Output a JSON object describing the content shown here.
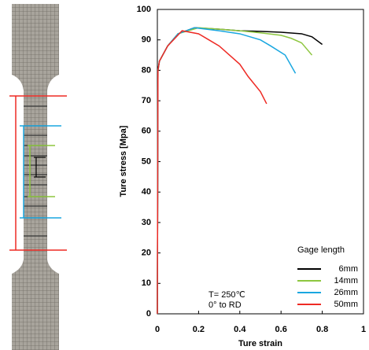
{
  "chart_data": {
    "type": "line",
    "xlabel": "Ture strain",
    "ylabel": "Ture stress [Mpa]",
    "xlim": [
      0,
      1
    ],
    "ylim": [
      0,
      100
    ],
    "xticks": [
      0,
      0.2,
      0.4,
      0.6,
      0.8,
      1
    ],
    "yticks": [
      0,
      10,
      20,
      30,
      40,
      50,
      60,
      70,
      80,
      90,
      100
    ],
    "legend_title": "Gage length",
    "annotations": [
      "T= 250℃",
      "0° to RD"
    ],
    "series": [
      {
        "name": "6mm",
        "color": "#000000",
        "x": [
          0,
          0.003,
          0.01,
          0.05,
          0.1,
          0.18,
          0.3,
          0.4,
          0.5,
          0.6,
          0.7,
          0.75,
          0.8
        ],
        "values": [
          0,
          80,
          83,
          88,
          92,
          94,
          93.5,
          93,
          92.8,
          92.5,
          92,
          91,
          88.5
        ]
      },
      {
        "name": "14mm",
        "color": "#8dc63f",
        "x": [
          0,
          0.003,
          0.01,
          0.05,
          0.1,
          0.2,
          0.3,
          0.4,
          0.5,
          0.6,
          0.65,
          0.7,
          0.75
        ],
        "values": [
          0,
          80,
          83,
          88,
          92,
          94,
          93.5,
          93,
          92.3,
          91.5,
          90.5,
          89,
          85
        ]
      },
      {
        "name": "26mm",
        "color": "#1aa7e0",
        "x": [
          0,
          0.003,
          0.01,
          0.05,
          0.1,
          0.18,
          0.3,
          0.4,
          0.5,
          0.55,
          0.62,
          0.67
        ],
        "values": [
          0,
          80,
          83,
          88,
          92,
          94,
          93,
          92,
          90,
          88,
          85,
          79
        ]
      },
      {
        "name": "50mm",
        "color": "#ee2a24",
        "x": [
          0,
          0.003,
          0.01,
          0.05,
          0.12,
          0.2,
          0.25,
          0.3,
          0.35,
          0.4,
          0.44,
          0.5,
          0.53
        ],
        "values": [
          0,
          80,
          83,
          88,
          93,
          92,
          90,
          88,
          85,
          82,
          78,
          73,
          69
        ]
      }
    ]
  }
}
